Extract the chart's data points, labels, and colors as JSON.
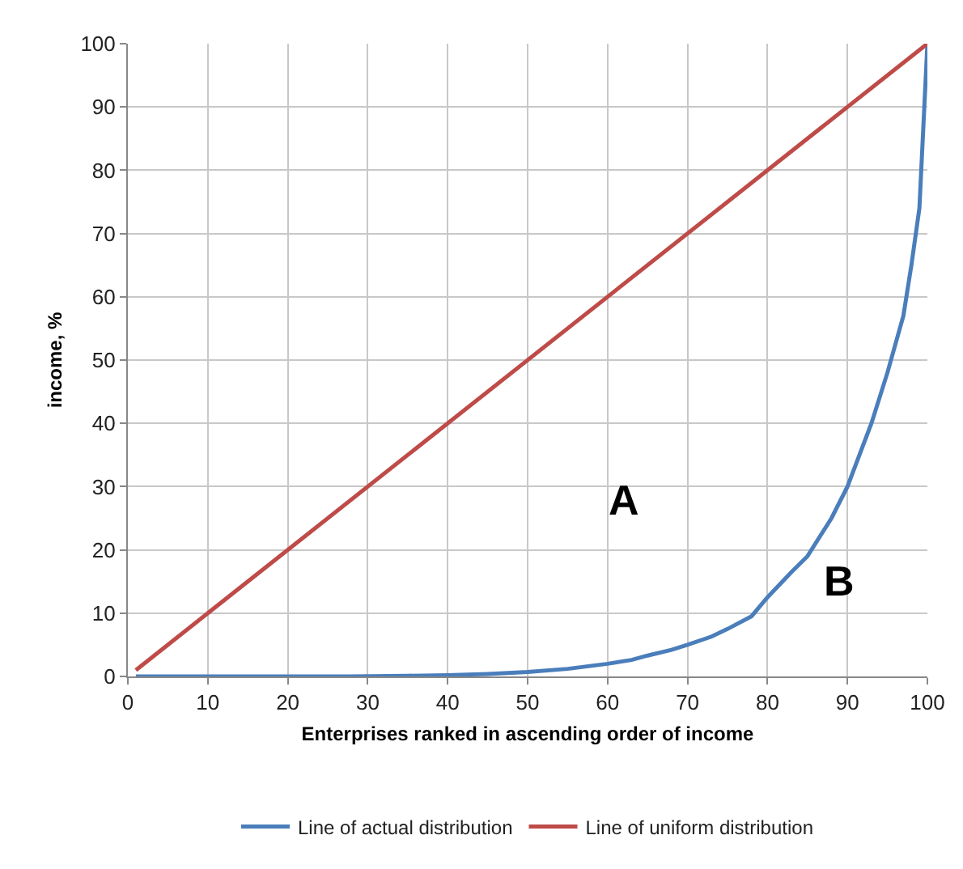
{
  "chart_data": {
    "type": "line",
    "xlabel": "Enterprises ranked in ascending order of income",
    "ylabel": "income, %",
    "xlim": [
      0,
      100
    ],
    "xticks": [
      0,
      10,
      20,
      30,
      40,
      50,
      60,
      70,
      80,
      90,
      100
    ],
    "ylim": [
      0,
      100
    ],
    "yticks": [
      0,
      10,
      20,
      30,
      40,
      50,
      60,
      70,
      80,
      90,
      100
    ],
    "grid": true,
    "legend": "bottom",
    "marker": "none",
    "line_style": "solid",
    "annotations": [
      "A",
      "B"
    ],
    "series": [
      {
        "name": "Line of actual distribution",
        "color": "#4a7ebb",
        "x": [
          1,
          10,
          20,
          28,
          35,
          40,
          45,
          50,
          55,
          60,
          63,
          65,
          68,
          70,
          73,
          75,
          78,
          80,
          83,
          85,
          88,
          90,
          93,
          95,
          97,
          98,
          99,
          100
        ],
        "values": [
          0,
          0,
          0,
          0,
          0.1,
          0.2,
          0.4,
          0.7,
          1.2,
          2,
          2.6,
          3.3,
          4.2,
          5,
          6.3,
          7.5,
          9.5,
          12.5,
          16.5,
          19,
          25,
          30,
          40,
          48,
          57,
          65,
          74,
          100
        ]
      },
      {
        "name": "Line of uniform distribution",
        "color": "#be4b48",
        "x": [
          1,
          100
        ],
        "values": [
          1,
          100
        ]
      }
    ]
  }
}
